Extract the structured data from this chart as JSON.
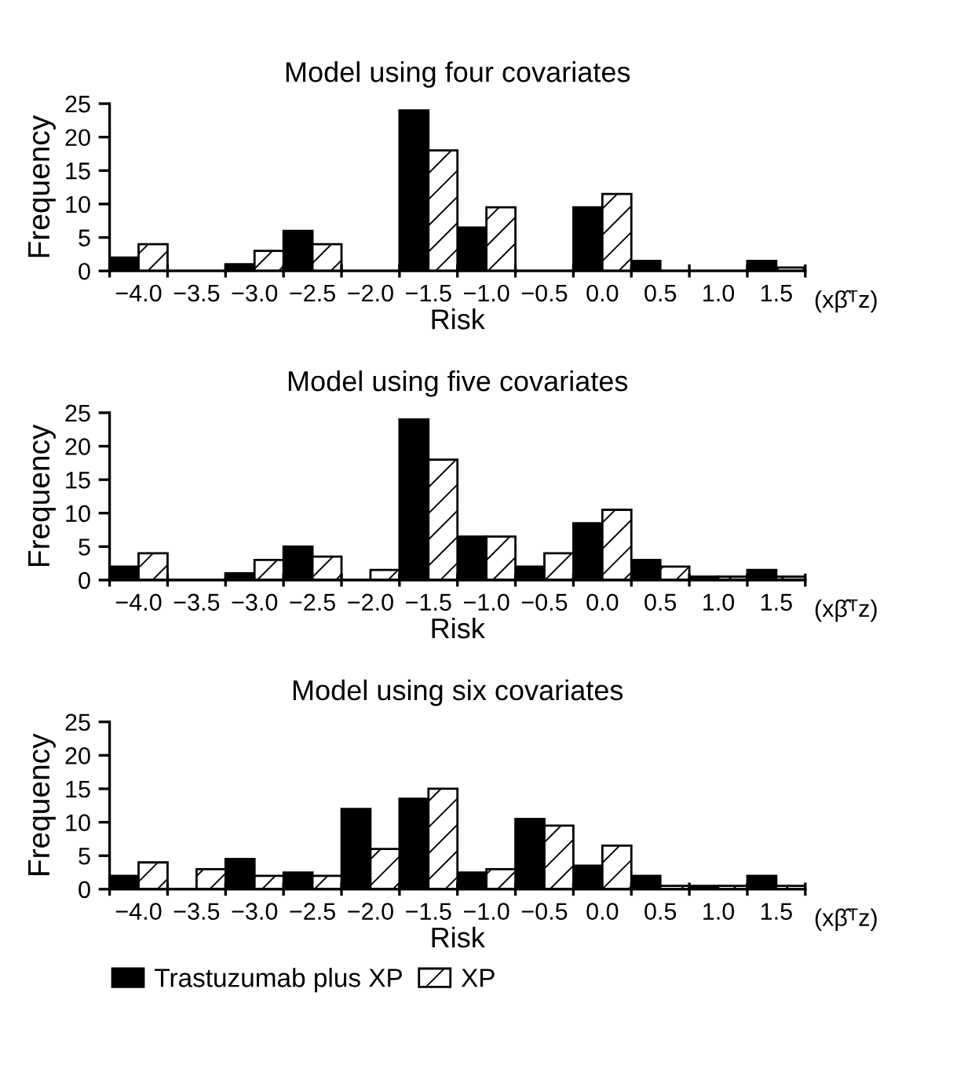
{
  "chart_data": [
    {
      "type": "bar",
      "title": "Model using four covariates",
      "xlabel": "Risk",
      "ylabel": "Frequency",
      "annotations": [
        "(xβ̂ᵀz)"
      ],
      "categories": [
        "−4.0",
        "−3.5",
        "−3.0",
        "−2.5",
        "−2.0",
        "−1.5",
        "−1.0",
        "−0.5",
        "0.0",
        "0.5",
        "1.0",
        "1.5"
      ],
      "series": [
        {
          "color": "#000000",
          "values": [
            2,
            0,
            1,
            6,
            0,
            24,
            6.5,
            0,
            9.5,
            1.5,
            0,
            1.5
          ]
        },
        {
          "color": "#000000",
          "values": [
            4,
            0,
            3,
            4,
            0,
            18,
            9.5,
            0,
            11.5,
            0,
            0,
            0.5
          ]
        }
      ],
      "ylim": [
        0,
        25
      ],
      "yticks": [
        0,
        5,
        10,
        15,
        20,
        25
      ],
      "grid": false,
      "legend": false
    },
    {
      "type": "bar",
      "title": "Model using five covariates",
      "xlabel": "Risk",
      "ylabel": "Frequency",
      "annotations": [
        "(xβ̂ᵀz)"
      ],
      "categories": [
        "−4.0",
        "−3.5",
        "−3.0",
        "−2.5",
        "−2.0",
        "−1.5",
        "−1.0",
        "−0.5",
        "0.0",
        "0.5",
        "1.0",
        "1.5"
      ],
      "series": [
        {
          "color": "#000000",
          "values": [
            2,
            0,
            1,
            5,
            0,
            24,
            6.5,
            2,
            8.5,
            3,
            0.5,
            1.5
          ]
        },
        {
          "color": "#000000",
          "values": [
            4,
            0,
            3,
            3.5,
            1.5,
            18,
            6.5,
            4,
            10.5,
            2,
            0.5,
            0.5
          ]
        }
      ],
      "ylim": [
        0,
        25
      ],
      "yticks": [
        0,
        5,
        10,
        15,
        20,
        25
      ],
      "grid": false,
      "legend": false
    },
    {
      "type": "bar",
      "title": "Model using six covariates",
      "xlabel": "Risk",
      "ylabel": "Frequency",
      "annotations": [
        "(xβ̂ᵀz)"
      ],
      "categories": [
        "−4.0",
        "−3.5",
        "−3.0",
        "−2.5",
        "−2.0",
        "−1.5",
        "−1.0",
        "−0.5",
        "0.0",
        "0.5",
        "1.0",
        "1.5"
      ],
      "series": [
        {
          "name": "Trastuzumab plus XP",
          "color": "#000000",
          "values": [
            2,
            0,
            4.5,
            2.5,
            12,
            13.5,
            2.5,
            10.5,
            3.5,
            2,
            0.5,
            2
          ]
        },
        {
          "name": "XP",
          "color": "#000000",
          "values": [
            4,
            3,
            2,
            2,
            6,
            15,
            3,
            9.5,
            6.5,
            0.5,
            0.5,
            0.5
          ]
        }
      ],
      "ylim": [
        0,
        25
      ],
      "yticks": [
        0,
        5,
        10,
        15,
        20,
        25
      ],
      "grid": false,
      "legend": "bottom left"
    }
  ]
}
